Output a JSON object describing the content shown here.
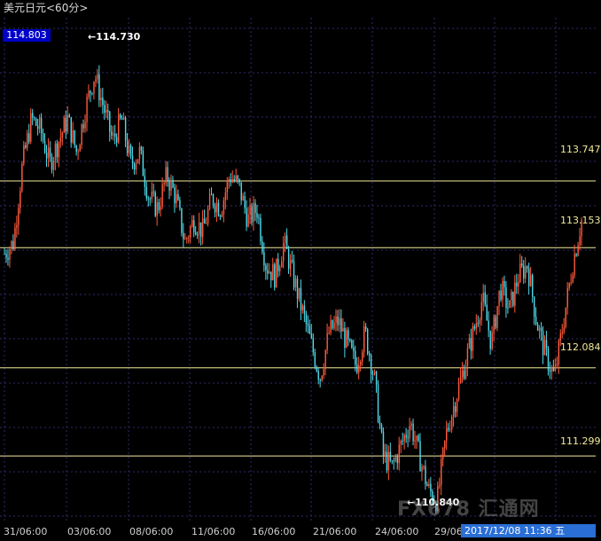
{
  "window": {
    "title": "美元日元<60分>"
  },
  "current_price": "114.803",
  "chart_data": {
    "type": "candlestick",
    "title": "美元日元<60分>",
    "ylim": [
      110.7,
      115.2
    ],
    "x_tick_labels": [
      "31/06:00",
      "03/06:00",
      "08/06:00",
      "11/06:00",
      "16/06:00",
      "21/06:00",
      "24/06:00",
      "29/06"
    ],
    "horizontal_levels": [
      {
        "value": 113.747,
        "label": "113.747"
      },
      {
        "value": 113.153,
        "label": "113.153"
      },
      {
        "value": 112.084,
        "label": "112.084"
      },
      {
        "value": 111.299,
        "label": "111.299"
      }
    ],
    "annotations": [
      {
        "text": "114.730",
        "value": 114.73,
        "kind": "high"
      },
      {
        "text": "110.840",
        "value": 110.84,
        "kind": "low"
      }
    ],
    "close_path": [
      113.1,
      113.2,
      113.9,
      114.3,
      114.2,
      113.9,
      114.1,
      114.3,
      114.0,
      114.4,
      114.7,
      114.4,
      114.1,
      114.3,
      113.9,
      114.0,
      113.6,
      113.5,
      113.8,
      113.6,
      113.2,
      113.4,
      113.3,
      113.6,
      113.5,
      113.8,
      113.7,
      113.4,
      113.5,
      113.0,
      112.9,
      113.2,
      112.9,
      112.6,
      112.3,
      112.0,
      112.4,
      112.5,
      112.3,
      112.1,
      112.4,
      112.0,
      111.3,
      111.2,
      111.4,
      111.6,
      111.3,
      111.0,
      110.9,
      111.5,
      111.8,
      112.1,
      112.4,
      112.7,
      112.3,
      112.8,
      112.6,
      112.9,
      113.0,
      112.5,
      112.2,
      112.0,
      112.5,
      113.0,
      113.4
    ],
    "candle_colors": {
      "up": "#ff5a3c",
      "down": "#4fd8e8"
    },
    "grid": true
  },
  "watermark": "FX678 汇通网",
  "status_bar": {
    "text": "2017/12/08 11:36 五"
  },
  "colors": {
    "background": "#000000",
    "level_line": "#f2ea9a",
    "grid": "#2c2c6c"
  }
}
